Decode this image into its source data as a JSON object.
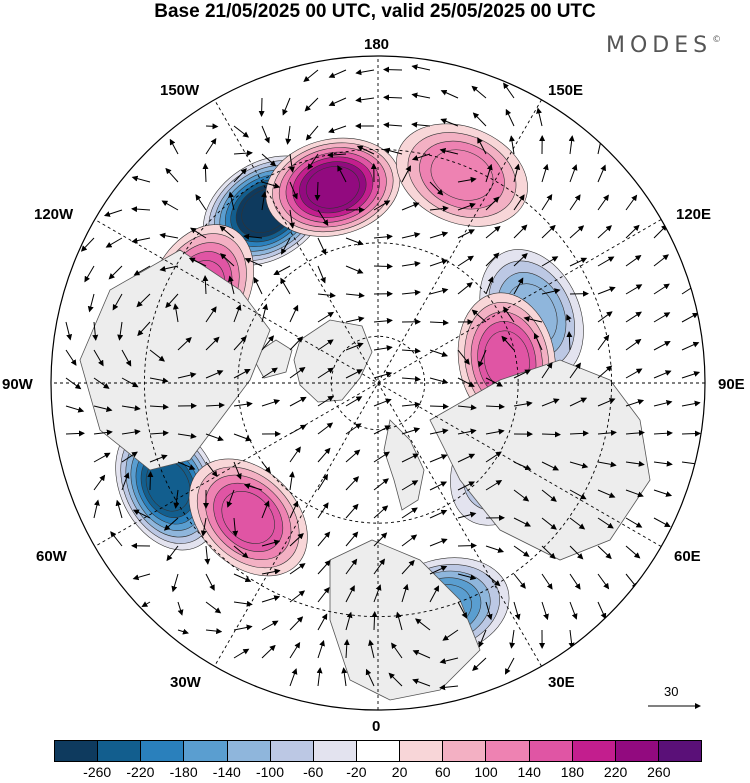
{
  "title": "Base 21/05/2025 00 UTC, valid 25/05/2025 00 UTC",
  "brand": "MODES",
  "brand_mark": "©",
  "map": {
    "projection": "north-polar-stereographic",
    "longitude_labels": {
      "top": "180",
      "top_left": "150W",
      "top_right": "150E",
      "upper_left": "120W",
      "upper_right": "120E",
      "left": "90W",
      "right": "90E",
      "lower_left": "60W",
      "lower_right": "60E",
      "bottom_left": "30W",
      "bottom_right": "30E",
      "bottom": "0"
    },
    "reference_vector": "30",
    "anomaly_centers": [
      {
        "lon": -147,
        "lat": 46,
        "value": -260
      },
      {
        "lon": -167,
        "lat": 47,
        "value": 220
      },
      {
        "lon": -118,
        "lat": 47,
        "value": 140
      },
      {
        "lon": -100,
        "lat": 42,
        "value": 180
      },
      {
        "lon": -64,
        "lat": 40,
        "value": -220
      },
      {
        "lon": -44,
        "lat": 50,
        "value": 140
      },
      {
        "lon": 16,
        "lat": 40,
        "value": -140
      },
      {
        "lon": 114,
        "lat": 54,
        "value": -100
      },
      {
        "lon": 100,
        "lat": 62,
        "value": 160
      },
      {
        "lon": 58,
        "lat": 58,
        "value": -60
      },
      {
        "lon": 158,
        "lat": 42,
        "value": 100
      }
    ]
  },
  "colorbar": {
    "colors": [
      "#0e3a5e",
      "#125e8e",
      "#2a80bc",
      "#5a9ed0",
      "#8fb6dc",
      "#bcc8e4",
      "#e3e3ef",
      "#ffffff",
      "#f8d6d8",
      "#f3b0c3",
      "#ee82b2",
      "#e055a4",
      "#c31e8e",
      "#920a7f",
      "#5a1078"
    ],
    "ticks": [
      "-260",
      "-220",
      "-180",
      "-140",
      "-100",
      "-60",
      "-20",
      "20",
      "60",
      "100",
      "140",
      "180",
      "220",
      "260"
    ]
  }
}
